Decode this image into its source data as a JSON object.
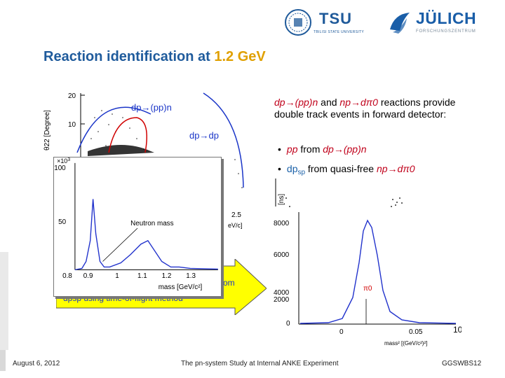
{
  "header": {
    "tsu_name": "TSU",
    "tsu_sub": "TBILISI STATE UNIVERSITY",
    "juelich_name": "JÜLICH",
    "juelich_sub": "FORSCHUNGSZENTRUM",
    "title_main": "Reaction identification at ",
    "title_accent": "1.2 GeV"
  },
  "text": {
    "intro_1": "dp→(pp)n",
    "intro_2": " and ",
    "intro_3": "np→dπ0",
    "intro_4": " reactions provide double track events in forward detector:",
    "bullet1_dot": "•",
    "bullet1_a": "pp",
    "bullet1_b": " from ",
    "bullet1_c": "dp→(pp)n",
    "bullet2_dot": "•",
    "bullet2_a": "dp",
    "bullet2_sub": "sp",
    "bullet2_b": " from quasi-free ",
    "bullet2_c": "np→dπ0"
  },
  "plot_theta": {
    "ylabel": "θ22 [Degree]",
    "yticks": [
      "20",
      "10"
    ],
    "label_pp": "dp→(pp)n",
    "label_dp": "dp→dp",
    "xtick": "2.5",
    "xunit": "eV/c]"
  },
  "plot_mass": {
    "exp": "×10",
    "exp_pow": "3",
    "yticks": [
      "100",
      "50"
    ],
    "xticks": [
      "0.8",
      "0.9",
      "1",
      "1.1",
      "1.2",
      "1.3"
    ],
    "xlabel": "mass [GeV/c²]",
    "annotation": "Neutron mass"
  },
  "plot_tof": {
    "ylabel": "[ns]"
  },
  "plot_mm": {
    "yticks": [
      "8000",
      "6000",
      "4000",
      "2000",
      "0"
    ],
    "xticks": [
      "0",
      "0.05"
    ],
    "xtick_right": "10",
    "xlabel": "mass² [(GeV/c²)²]",
    "peak_label": "π0"
  },
  "arrow": {
    "line1_tail": "om",
    "line2": "dpsp using time-of-flight method"
  },
  "footer": {
    "date": "August 6, 2012",
    "center": "The pn-system Study at Internal ANKE Experiment",
    "right": "GGSWBS12"
  },
  "colors": {
    "title": "#1f5b9c",
    "accent": "#e0a000",
    "red_text": "#c0001a",
    "blue_text": "#1a60a8",
    "arrow_fill": "#ffff00"
  }
}
